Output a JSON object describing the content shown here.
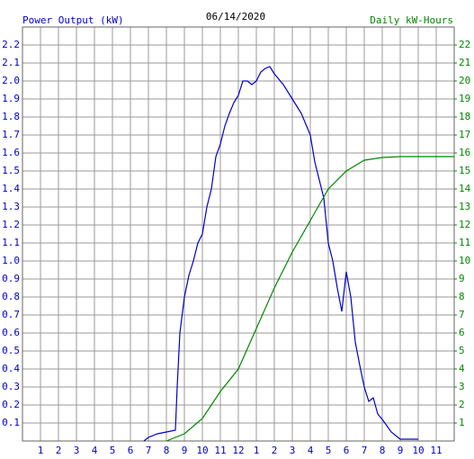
{
  "chart_data": {
    "type": "line",
    "title": "06/14/2020",
    "xlim": [
      0,
      24
    ],
    "xticks": [
      1,
      2,
      3,
      4,
      5,
      6,
      7,
      8,
      9,
      10,
      11,
      12,
      {
        "value": 13,
        "label": "1"
      },
      {
        "value": 14,
        "label": "2"
      },
      {
        "value": 15,
        "label": "3"
      },
      {
        "value": 16,
        "label": "4"
      },
      {
        "value": 17,
        "label": "5"
      },
      {
        "value": 18,
        "label": "6"
      },
      {
        "value": 19,
        "label": "7"
      },
      {
        "value": 20,
        "label": "8"
      },
      {
        "value": 21,
        "label": "9"
      },
      {
        "value": 22,
        "label": "10"
      },
      {
        "value": 23,
        "label": "11"
      }
    ],
    "ylim": [
      0,
      2.3
    ],
    "yticks": [
      0.1,
      0.2,
      0.3,
      0.4,
      0.5,
      0.6,
      0.7,
      0.8,
      0.9,
      {
        "value": 1,
        "label": "1.0"
      },
      1.1,
      1.2,
      1.3,
      1.4,
      1.5,
      1.6,
      1.7,
      1.8,
      1.9,
      {
        "value": 2,
        "label": "2.0"
      },
      2.1,
      2.2
    ],
    "y2lim": [
      0,
      23
    ],
    "y2ticks": [
      1,
      2,
      3,
      4,
      5,
      6,
      7,
      8,
      9,
      10,
      11,
      12,
      13,
      14,
      15,
      16,
      17,
      18,
      19,
      20,
      21,
      22
    ],
    "grid": true,
    "series": [
      {
        "name": "Power Output (kW)",
        "color": "#0000cc",
        "x": [
          6.75,
          7,
          7.5,
          8,
          8.5,
          8.6,
          8.75,
          9,
          9.25,
          9.5,
          9.75,
          10,
          10.25,
          10.5,
          10.75,
          11,
          11.25,
          11.5,
          11.75,
          12,
          12.25,
          12.5,
          12.75,
          13,
          13.25,
          13.5,
          13.75,
          14,
          14.25,
          14.5,
          14.75,
          15,
          15.25,
          15.5,
          15.75,
          16,
          16.25,
          16.5,
          16.75,
          17,
          17.25,
          17.5,
          17.75,
          18,
          18.25,
          18.5,
          18.75,
          19,
          19.25,
          19.5,
          19.75,
          20,
          20.5,
          21,
          22
        ],
        "values": [
          0,
          0.02,
          0.04,
          0.05,
          0.06,
          0.3,
          0.6,
          0.8,
          0.92,
          1.0,
          1.1,
          1.15,
          1.3,
          1.4,
          1.58,
          1.65,
          1.75,
          1.82,
          1.88,
          1.92,
          2.0,
          2.0,
          1.98,
          2.0,
          2.05,
          2.07,
          2.08,
          2.04,
          2.01,
          1.98,
          1.94,
          1.9,
          1.86,
          1.82,
          1.76,
          1.7,
          1.55,
          1.45,
          1.35,
          1.1,
          1.0,
          0.85,
          0.72,
          0.94,
          0.8,
          0.55,
          0.42,
          0.3,
          0.22,
          0.24,
          0.15,
          0.12,
          0.05,
          0.01,
          0.01
        ]
      },
      {
        "name": "Daily kW-Hours",
        "color": "#008800",
        "axis": "y2",
        "x": [
          8,
          9,
          10,
          11,
          12,
          13,
          14,
          15,
          16,
          17,
          18,
          19,
          20,
          21,
          24
        ],
        "values": [
          0,
          0.4,
          1.25,
          2.75,
          4.0,
          6.25,
          8.5,
          10.5,
          12.25,
          14.0,
          15.0,
          15.6,
          15.75,
          15.8,
          15.8
        ]
      }
    ]
  }
}
